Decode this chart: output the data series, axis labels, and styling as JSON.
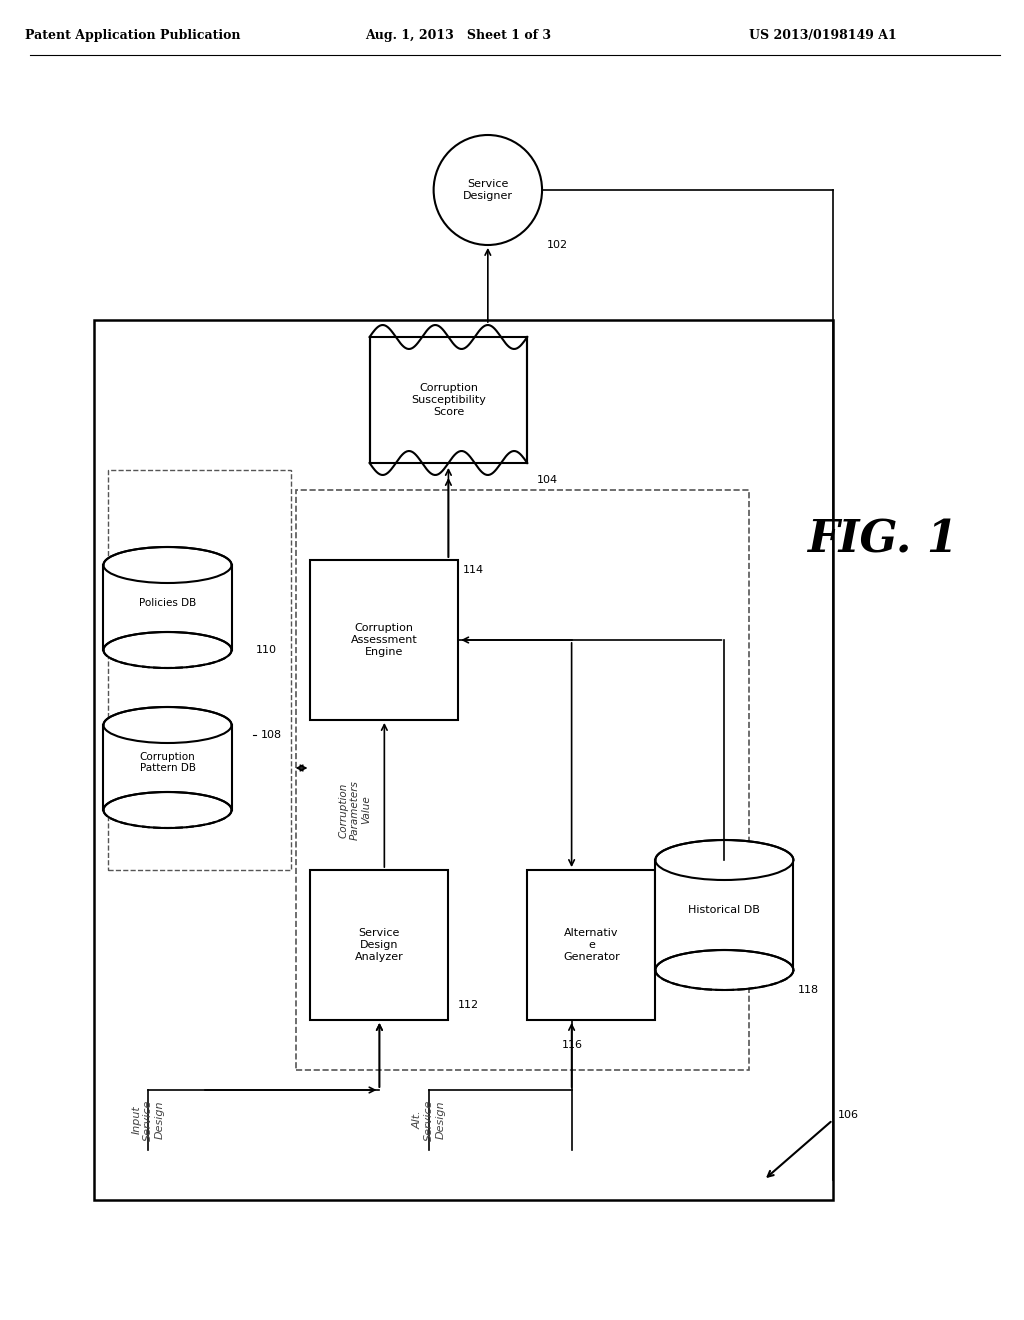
{
  "title_left": "Patent Application Publication",
  "title_mid": "Aug. 1, 2013   Sheet 1 of 3",
  "title_right": "US 2013/0198149 A1",
  "fig_label": "FIG. 1",
  "background": "#ffffff",
  "header_color": "#000000",
  "box_color": "#000000",
  "dashed_color": "#555555"
}
